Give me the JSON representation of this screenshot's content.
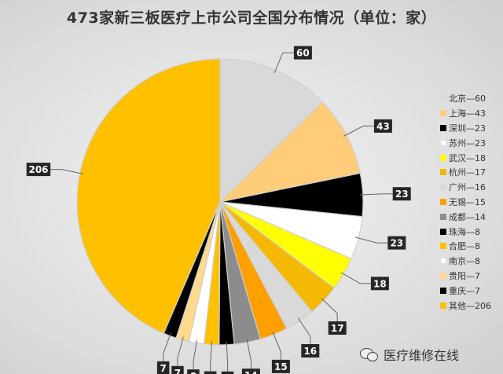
{
  "title": "473家新三板医疗上市公司全国分布情况（单位：家）",
  "watermark": "医疗维修在线",
  "chart_data": {
    "type": "pie",
    "title": "473家新三板医疗上市公司全国分布情况（单位：家）",
    "slices": [
      {
        "name": "北京",
        "value": 60,
        "legend": "北京—60",
        "color": "#d9d9d9"
      },
      {
        "name": "上海",
        "value": 43,
        "legend": "上海—43",
        "color": "#ffcc7a"
      },
      {
        "name": "深圳",
        "value": 23,
        "legend": "深圳—23",
        "color": "#000000"
      },
      {
        "name": "苏州",
        "value": 23,
        "legend": "苏州—23",
        "color": "#ffffff"
      },
      {
        "name": "武汉",
        "value": 18,
        "legend": "武汉—18",
        "color": "#ffff00"
      },
      {
        "name": "杭州",
        "value": 17,
        "legend": "杭州—17",
        "color": "#f5b800"
      },
      {
        "name": "广州",
        "value": 16,
        "legend": "广州—16",
        "color": "#d9d9d9"
      },
      {
        "name": "无锡",
        "value": 15,
        "legend": "无锡—15",
        "color": "#ff9f00"
      },
      {
        "name": "成都",
        "value": 14,
        "legend": "成都—14",
        "color": "#8c8c8c"
      },
      {
        "name": "珠海",
        "value": 8,
        "legend": "珠海—8",
        "color": "#000000"
      },
      {
        "name": "合肥",
        "value": 8,
        "legend": "合肥—8",
        "color": "#ffc000"
      },
      {
        "name": "南京",
        "value": 8,
        "legend": "南京—8",
        "color": "#ffffff"
      },
      {
        "name": "贵阳",
        "value": 7,
        "legend": "贵阳—7",
        "color": "#ffd98c"
      },
      {
        "name": "重庆",
        "value": 7,
        "legend": "重庆—7",
        "color": "#000000"
      },
      {
        "name": "其他",
        "value": 206,
        "legend": "其他—206",
        "color": "#ffc000"
      }
    ],
    "legend_position": "right",
    "start_angle_deg": 0,
    "direction": "clockwise"
  }
}
